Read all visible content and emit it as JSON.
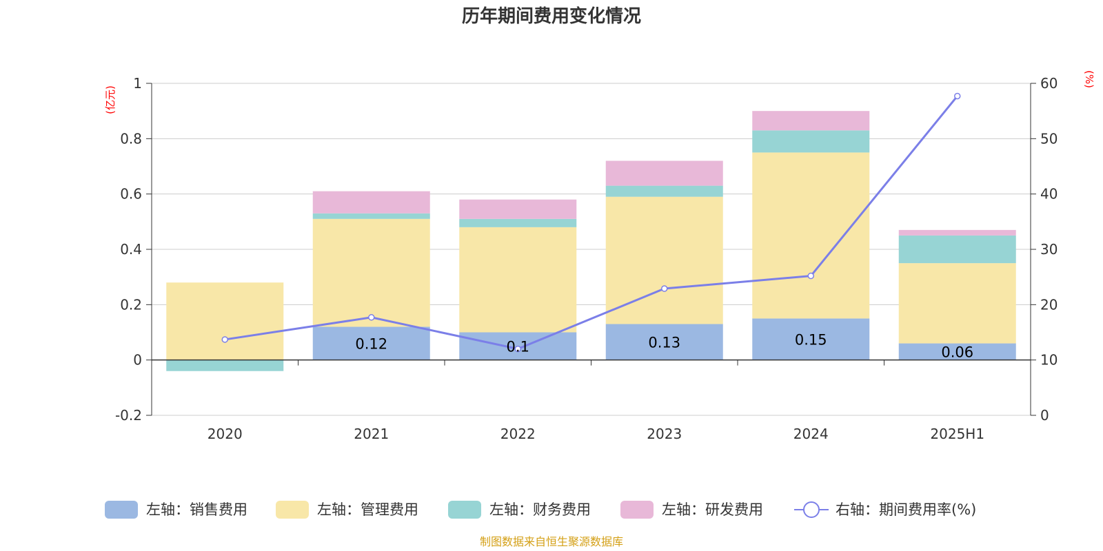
{
  "chart_data": {
    "type": "bar",
    "stacked": true,
    "title": "历年期间费用变化情况",
    "categories": [
      "2020",
      "2021",
      "2022",
      "2023",
      "2024",
      "2025H1"
    ],
    "left_axis": {
      "unit": "(亿元)",
      "ylim": [
        -0.2,
        1
      ],
      "ticks": [
        "1",
        "0.8",
        "0.6",
        "0.4",
        "0.2",
        "0",
        "-0.2"
      ]
    },
    "right_axis": {
      "unit": "(%)",
      "ylim": [
        0,
        60
      ],
      "ticks": [
        "60",
        "50",
        "40",
        "30",
        "20",
        "10",
        "0"
      ]
    },
    "grid": true,
    "legend_position": "bottom",
    "series": [
      {
        "name": "左轴：销售费用",
        "axis": "left",
        "color": "#9bb8e2",
        "values": [
          0,
          0.12,
          0.1,
          0.13,
          0.15,
          0.06
        ],
        "labels": [
          "",
          "0.12",
          "0.1",
          "0.13",
          "0.15",
          "0.06"
        ]
      },
      {
        "name": "左轴：管理费用",
        "axis": "left",
        "color": "#f8e7a8",
        "values": [
          0.28,
          0.39,
          0.38,
          0.46,
          0.6,
          0.29
        ]
      },
      {
        "name": "左轴：财务费用",
        "axis": "left",
        "color": "#97d4d4",
        "values": [
          -0.04,
          0.02,
          0.03,
          0.04,
          0.08,
          0.1
        ]
      },
      {
        "name": "左轴：研发费用",
        "axis": "left",
        "color": "#e8b8d8",
        "values": [
          0,
          0.08,
          0.07,
          0.09,
          0.07,
          0.02
        ]
      }
    ],
    "line_series": {
      "name": "右轴：期间费用率(%)",
      "axis": "right",
      "color": "#7b7fe8",
      "values": [
        13.7,
        17.7,
        12.0,
        22.9,
        25.2,
        57.7
      ]
    }
  },
  "source_text": "制图数据来自恒生聚源数据库"
}
